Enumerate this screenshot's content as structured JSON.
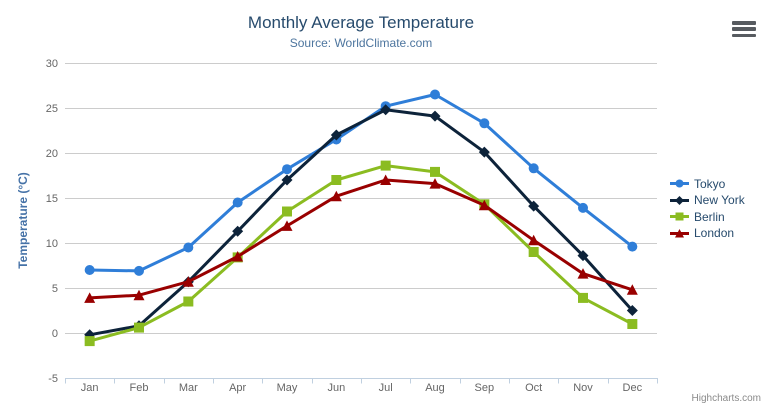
{
  "header": {
    "title": "Monthly Average Temperature",
    "subtitle": "Source: WorldClimate.com"
  },
  "credits": {
    "label": "Highcharts.com"
  },
  "icons": {
    "export_menu": "hamburger-icon"
  },
  "colors": {
    "title": "#274b6d",
    "subtitle": "#4d759e",
    "axis_title": "#4572a7",
    "axis_labels": "#666666",
    "grid_line": "#cccccc",
    "axis_line": "#c0d0e0",
    "legend_text": "#274b6d",
    "credits_text": "#8a8a8a"
  },
  "chart_data": {
    "type": "line",
    "title": "Monthly Average Temperature",
    "subtitle": "Source: WorldClimate.com",
    "xlabel": "",
    "ylabel": "Temperature (°C)",
    "ylim": [
      -5,
      30
    ],
    "yticks": [
      -5,
      0,
      5,
      10,
      15,
      20,
      25,
      30
    ],
    "grid": true,
    "legend_position": "right",
    "categories": [
      "Jan",
      "Feb",
      "Mar",
      "Apr",
      "May",
      "Jun",
      "Jul",
      "Aug",
      "Sep",
      "Oct",
      "Nov",
      "Dec"
    ],
    "series": [
      {
        "name": "Tokyo",
        "color": "#2f7ed8",
        "marker": "circle",
        "values": [
          7.0,
          6.9,
          9.5,
          14.5,
          18.2,
          21.5,
          25.2,
          26.5,
          23.3,
          18.3,
          13.9,
          9.6
        ]
      },
      {
        "name": "New York",
        "color": "#0d233a",
        "marker": "diamond",
        "values": [
          -0.2,
          0.8,
          5.7,
          11.3,
          17.0,
          22.0,
          24.8,
          24.1,
          20.1,
          14.1,
          8.6,
          2.5
        ]
      },
      {
        "name": "Berlin",
        "color": "#8bbc21",
        "marker": "square",
        "values": [
          -0.9,
          0.6,
          3.5,
          8.4,
          13.5,
          17.0,
          18.6,
          17.9,
          14.3,
          9.0,
          3.9,
          1.0
        ]
      },
      {
        "name": "London",
        "color": "#990000",
        "marker": "triangle",
        "values": [
          3.9,
          4.2,
          5.7,
          8.5,
          11.9,
          15.2,
          17.0,
          16.6,
          14.2,
          10.3,
          6.6,
          4.8
        ]
      }
    ]
  }
}
